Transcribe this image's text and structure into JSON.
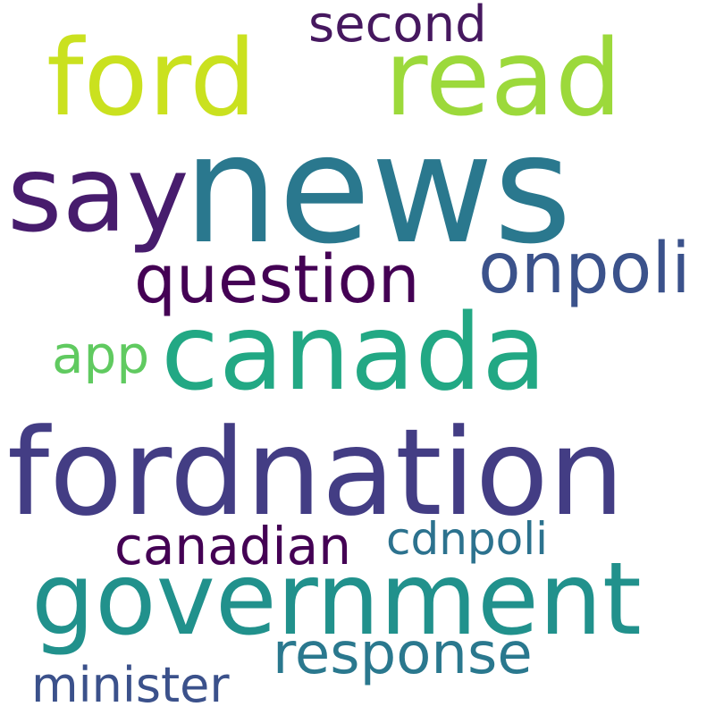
{
  "background": "#ffffff",
  "words": {
    "news": {
      "text": "news",
      "color": "#2a788e"
    },
    "ford": {
      "text": "ford",
      "color": "#cae11f"
    },
    "read": {
      "text": "read",
      "color": "#9cd93b"
    },
    "second": {
      "text": "second",
      "color": "#46185f"
    },
    "say": {
      "text": "say",
      "color": "#471c6d"
    },
    "question": {
      "text": "question",
      "color": "#440154"
    },
    "onpoli": {
      "text": "onpoli",
      "color": "#3b528b"
    },
    "canada": {
      "text": "canada",
      "color": "#22a884"
    },
    "app": {
      "text": "app",
      "color": "#60ca60"
    },
    "fordnation": {
      "text": "fordnation",
      "color": "#433d84"
    },
    "canadian": {
      "text": "canadian",
      "color": "#440154"
    },
    "cdnpoli": {
      "text": "cdnpoli",
      "color": "#2c728e"
    },
    "government": {
      "text": "government",
      "color": "#21918c"
    },
    "response": {
      "text": "response",
      "color": "#2a788e"
    },
    "minister": {
      "text": "minister",
      "color": "#3b518b"
    }
  }
}
